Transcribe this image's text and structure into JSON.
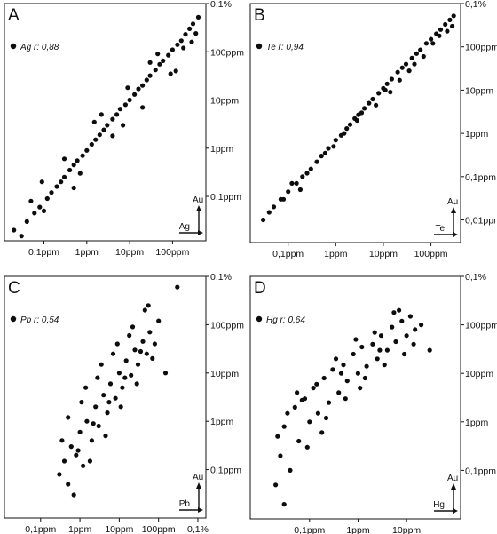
{
  "chart_data": [
    {
      "panel": "A",
      "type": "scatter",
      "log_scale": true,
      "legend": "Ag r: 0,88",
      "series_name": "Ag",
      "r": 0.88,
      "xlabel": "Ag",
      "ylabel": "Au",
      "x_ticks": [
        "0,1ppm",
        "1ppm",
        "10ppm",
        "100ppm"
      ],
      "y_ticks": [
        "0,1ppm",
        "1ppm",
        "10ppm",
        "100ppm",
        "0,1%"
      ],
      "x_tick_values_ppm": [
        0.1,
        1,
        10,
        100
      ],
      "y_tick_values_ppm": [
        0.1,
        1,
        10,
        100,
        1000
      ],
      "xlim_ppm": [
        0.012,
        600
      ],
      "ylim_ppm": [
        0.012,
        1000
      ],
      "point_color": "#0d0d0d",
      "x": [
        0.02,
        0.04,
        0.06,
        0.08,
        0.12,
        0.15,
        0.2,
        0.25,
        0.3,
        0.4,
        0.5,
        0.6,
        0.8,
        1,
        1.3,
        1.6,
        2,
        2.5,
        3,
        4,
        5,
        6,
        8,
        10,
        13,
        16,
        20,
        25,
        30,
        40,
        50,
        60,
        80,
        100,
        130,
        160,
        200,
        250,
        300,
        400,
        0.05,
        0.1,
        0.3,
        0.7,
        1.5,
        4,
        9,
        20,
        45,
        90,
        180,
        350,
        0.03,
        0.09,
        0.5,
        2.2,
        7,
        30,
        120,
        280
      ],
      "y": [
        0.02,
        0.03,
        0.045,
        0.06,
        0.09,
        0.12,
        0.16,
        0.2,
        0.25,
        0.35,
        0.45,
        0.55,
        0.7,
        0.9,
        1.2,
        1.5,
        1.9,
        2.4,
        3,
        4,
        5,
        6.5,
        8,
        10,
        13,
        17,
        20,
        26,
        32,
        42,
        55,
        65,
        85,
        110,
        140,
        170,
        230,
        300,
        380,
        520,
        0.08,
        0.05,
        0.6,
        0.3,
        3.5,
        1.8,
        18,
        7,
        90,
        35,
        120,
        240,
        0.015,
        0.2,
        0.15,
        5,
        3,
        60,
        40,
        160
      ]
    },
    {
      "panel": "B",
      "type": "scatter",
      "log_scale": true,
      "legend": "Te r: 0,94",
      "series_name": "Te",
      "r": 0.94,
      "xlabel": "Te",
      "ylabel": "Au",
      "x_ticks": [
        "0,1ppm",
        "1ppm",
        "10ppm",
        "100ppm"
      ],
      "y_ticks": [
        "0,01ppm",
        "0,1ppm",
        "1ppm",
        "10ppm",
        "100ppm",
        "0,1%"
      ],
      "x_tick_values_ppm": [
        0.1,
        1,
        10,
        100
      ],
      "y_tick_values_ppm": [
        0.01,
        0.1,
        1,
        10,
        100,
        1000
      ],
      "xlim_ppm": [
        0.016,
        420
      ],
      "ylim_ppm": [
        0.003,
        1000
      ],
      "point_color": "#0d0d0d",
      "x": [
        0.03,
        0.05,
        0.08,
        0.1,
        0.15,
        0.2,
        0.3,
        0.4,
        0.5,
        0.7,
        1,
        1.3,
        1.7,
        2,
        2.5,
        3,
        4,
        5,
        6,
        8,
        10,
        12,
        15,
        20,
        25,
        30,
        40,
        50,
        60,
        80,
        100,
        130,
        160,
        200,
        250,
        300,
        0.07,
        0.25,
        0.9,
        3.5,
        14,
        45,
        150,
        0.12,
        0.6,
        2.8,
        11,
        35,
        110,
        280,
        0.04,
        0.18,
        1.5,
        7,
        22,
        70,
        220
      ],
      "y": [
        0.01,
        0.02,
        0.03,
        0.045,
        0.07,
        0.1,
        0.15,
        0.22,
        0.3,
        0.45,
        0.7,
        0.9,
        1.3,
        1.6,
        2.2,
        2.7,
        3.8,
        5,
        6.2,
        8.5,
        11,
        14,
        18,
        26,
        33,
        40,
        55,
        70,
        85,
        120,
        150,
        200,
        250,
        330,
        420,
        520,
        0.03,
        0.12,
        0.5,
        3,
        9,
        40,
        180,
        0.07,
        0.35,
        2,
        10,
        28,
        120,
        300,
        0.015,
        0.05,
        1,
        4.5,
        17,
        60,
        230
      ]
    },
    {
      "panel": "C",
      "type": "scatter",
      "log_scale": true,
      "legend": "Pb r: 0,54",
      "series_name": "Pb",
      "r": 0.54,
      "xlabel": "Pb",
      "ylabel": "Au",
      "x_ticks": [
        "0,1ppm",
        "1ppm",
        "10ppm",
        "100ppm",
        "0,1%"
      ],
      "y_ticks": [
        "0,1ppm",
        "1ppm",
        "10ppm",
        "100ppm",
        "0,1%"
      ],
      "x_tick_values_ppm": [
        0.1,
        1,
        10,
        100,
        1000
      ],
      "y_tick_values_ppm": [
        0.1,
        1,
        10,
        100,
        1000
      ],
      "xlim_ppm": [
        0.012,
        1600
      ],
      "ylim_ppm": [
        0.01,
        1000
      ],
      "point_color": "#0d0d0d",
      "x": [
        0.3,
        0.4,
        0.5,
        0.6,
        0.8,
        1,
        1.2,
        1.5,
        2,
        2.5,
        3,
        4,
        5,
        6,
        8,
        10,
        12,
        15,
        20,
        25,
        30,
        40,
        50,
        60,
        80,
        100,
        0.35,
        0.7,
        1.1,
        1.8,
        2.8,
        4.5,
        7,
        11,
        18,
        28,
        45,
        70,
        0.5,
        0.9,
        1.4,
        2.2,
        3.5,
        5.5,
        9,
        14,
        22,
        35,
        55,
        150,
        300
      ],
      "y": [
        0.08,
        0.15,
        0.05,
        0.3,
        0.2,
        0.6,
        0.12,
        1,
        0.4,
        2,
        0.8,
        3.5,
        1.5,
        6,
        3,
        10,
        5,
        18,
        9,
        30,
        15,
        45,
        25,
        70,
        40,
        120,
        0.4,
        0.03,
        2.5,
        0.15,
        8,
        0.5,
        25,
        2,
        60,
        6,
        200,
        20,
        1.2,
        0.25,
        5,
        0.9,
        15,
        2.5,
        40,
        8,
        90,
        28,
        250,
        10,
        600
      ]
    },
    {
      "panel": "D",
      "type": "scatter",
      "log_scale": true,
      "legend": "Hg r: 0,64",
      "series_name": "Hg",
      "r": 0.64,
      "xlabel": "Hg",
      "ylabel": "Au",
      "x_ticks": [
        "0,1ppm",
        "1ppm",
        "10ppm"
      ],
      "y_ticks": [
        "0,1ppm",
        "1ppm",
        "10ppm",
        "100ppm",
        "0,1%"
      ],
      "x_tick_values_ppm": [
        0.1,
        1,
        10
      ],
      "y_tick_values_ppm": [
        0.1,
        1,
        10,
        100,
        1000
      ],
      "xlim_ppm": [
        0.006,
        130
      ],
      "ylim_ppm": [
        0.01,
        1000
      ],
      "point_color": "#0d0d0d",
      "x": [
        0.02,
        0.025,
        0.03,
        0.04,
        0.05,
        0.06,
        0.08,
        0.1,
        0.12,
        0.15,
        0.2,
        0.25,
        0.3,
        0.4,
        0.5,
        0.6,
        0.8,
        1,
        1.2,
        1.5,
        2,
        2.5,
        3,
        4,
        5,
        6,
        8,
        10,
        12,
        15,
        20,
        0.022,
        0.035,
        0.055,
        0.09,
        0.14,
        0.22,
        0.35,
        0.55,
        0.9,
        1.4,
        2.2,
        3.5,
        5.5,
        9,
        14,
        0.03,
        0.07,
        0.18,
        0.45,
        1.1,
        2.8,
        7,
        30
      ],
      "y": [
        0.05,
        0.2,
        0.8,
        0.1,
        2,
        0.4,
        3,
        1,
        5,
        1.5,
        8,
        2.5,
        12,
        4,
        15,
        7,
        25,
        10,
        35,
        14,
        40,
        20,
        60,
        30,
        90,
        45,
        120,
        60,
        150,
        80,
        100,
        0.5,
        1.5,
        4,
        0.3,
        6,
        1.2,
        20,
        3,
        50,
        8,
        70,
        15,
        180,
        25,
        40,
        0.02,
        2.8,
        0.6,
        10,
        5,
        30,
        200,
        30
      ]
    }
  ]
}
